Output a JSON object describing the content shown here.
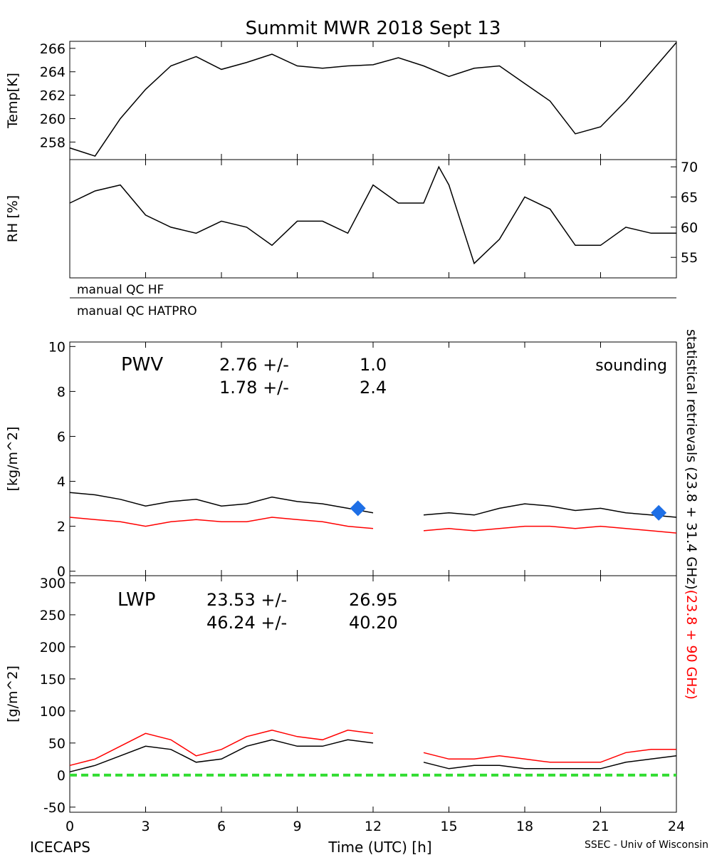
{
  "chart_data": [
    {
      "type": "line",
      "title": "Summit MWR 2018 Sept 13",
      "ylabel": "Temp[K]",
      "yaxis_side": "left",
      "xlim": [
        0,
        24
      ],
      "xticks": [
        0,
        3,
        6,
        9,
        12,
        15,
        18,
        21,
        24
      ],
      "ylim": [
        256.5,
        266.6
      ],
      "yticks": [
        258,
        260,
        262,
        264,
        266
      ],
      "x": [
        0,
        1,
        2,
        3,
        4,
        5,
        6,
        7,
        8,
        9,
        10,
        11,
        12,
        13,
        14,
        15,
        16,
        17,
        18,
        19,
        20,
        21,
        22,
        23,
        24
      ],
      "series": [
        {
          "color": "#000000",
          "values": [
            257.5,
            256.8,
            260,
            262.5,
            264.5,
            265.3,
            264.2,
            264.8,
            265.5,
            264.5,
            264.3,
            264.5,
            264.6,
            265.2,
            264.5,
            263.6,
            264.3,
            264.5,
            263,
            261.5,
            258.7,
            259.3,
            261.5,
            264,
            266.5
          ]
        }
      ]
    },
    {
      "type": "line",
      "ylabel": "RH [%]",
      "yaxis_side": "right",
      "xlim": [
        0,
        24
      ],
      "xticks": [
        0,
        3,
        6,
        9,
        12,
        15,
        18,
        21,
        24
      ],
      "ylim": [
        51.6,
        71.2
      ],
      "yticks": [
        55,
        60,
        65,
        70
      ],
      "x": [
        0,
        1,
        2,
        3,
        4,
        5,
        6,
        7,
        8,
        9,
        10,
        11,
        12,
        13,
        14,
        14.6,
        15,
        16,
        17,
        18,
        19,
        20,
        21,
        22,
        23,
        24
      ],
      "series": [
        {
          "color": "#000000",
          "values": [
            64,
            66,
            67,
            62,
            60,
            59,
            61,
            60,
            57,
            61,
            61,
            59,
            67,
            64,
            64,
            70,
            67,
            54,
            58,
            65,
            63,
            57,
            57,
            60,
            59,
            59
          ]
        }
      ],
      "qc_labels": [
        "manual QC HF",
        "manual QC HATPRO"
      ]
    },
    {
      "type": "line",
      "ylabel": "[kg/m^2]",
      "yaxis_side": "left",
      "xlim": [
        0,
        24
      ],
      "xticks": [
        0,
        3,
        6,
        9,
        12,
        15,
        18,
        21,
        24
      ],
      "ylim": [
        -0.2,
        10.2
      ],
      "yticks": [
        0,
        2,
        4,
        6,
        8,
        10
      ],
      "x": [
        0,
        1,
        2,
        3,
        4,
        5,
        6,
        7,
        8,
        9,
        10,
        11,
        12,
        13,
        14,
        15,
        16,
        17,
        18,
        19,
        20,
        21,
        22,
        23,
        24
      ],
      "series": [
        {
          "color": "#000000",
          "values": [
            3.5,
            3.4,
            3.2,
            2.9,
            3.1,
            3.2,
            2.9,
            3.0,
            3.3,
            3.1,
            3.0,
            2.8,
            2.6,
            null,
            2.5,
            2.6,
            2.5,
            2.8,
            3.0,
            2.9,
            2.7,
            2.8,
            2.6,
            2.5,
            2.4
          ]
        },
        {
          "color": "#ff0000",
          "values": [
            2.4,
            2.3,
            2.2,
            2.0,
            2.2,
            2.3,
            2.2,
            2.2,
            2.4,
            2.3,
            2.2,
            2.0,
            1.9,
            null,
            1.8,
            1.9,
            1.8,
            1.9,
            2.0,
            2.0,
            1.9,
            2.0,
            1.9,
            1.8,
            1.7
          ]
        }
      ],
      "sounding": {
        "color": "#1e6fe6",
        "x": [
          11.4,
          23.3
        ],
        "values": [
          2.8,
          2.6
        ]
      },
      "annotations": [
        {
          "text": "PWV",
          "color": "#000000"
        },
        {
          "text": "2.76 +/-",
          "color": "#000000"
        },
        {
          "text": "1.0",
          "color": "#000000"
        },
        {
          "text": "1.78 +/-",
          "color": "#ff0000"
        },
        {
          "text": "2.4",
          "color": "#ff0000"
        },
        {
          "text": "sounding",
          "color": "#1e6fe6"
        }
      ]
    },
    {
      "type": "line",
      "ylabel": "[g/m^2]",
      "yaxis_side": "left",
      "xlabel": "Time (UTC) [h]",
      "show_xtick_labels": true,
      "xlim": [
        0,
        24
      ],
      "xticks": [
        0,
        3,
        6,
        9,
        12,
        15,
        18,
        21,
        24
      ],
      "ylim": [
        -58,
        311
      ],
      "yticks": [
        -50,
        0,
        50,
        100,
        150,
        200,
        250,
        300
      ],
      "x": [
        0,
        1,
        2,
        3,
        4,
        5,
        6,
        7,
        8,
        9,
        10,
        11,
        12,
        13,
        14,
        15,
        16,
        17,
        18,
        19,
        20,
        21,
        22,
        23,
        24
      ],
      "series": [
        {
          "color": "#000000",
          "values": [
            5,
            15,
            30,
            45,
            40,
            20,
            25,
            45,
            55,
            45,
            45,
            55,
            50,
            null,
            20,
            10,
            15,
            15,
            10,
            10,
            10,
            10,
            20,
            25,
            30
          ]
        },
        {
          "color": "#ff0000",
          "values": [
            15,
            25,
            45,
            65,
            55,
            30,
            40,
            60,
            70,
            60,
            55,
            70,
            65,
            null,
            35,
            25,
            25,
            30,
            25,
            20,
            20,
            20,
            35,
            40,
            40
          ]
        }
      ],
      "hline": {
        "value": 0,
        "color": "#33dd33"
      },
      "annotations": [
        {
          "text": "LWP",
          "color": "#000000"
        },
        {
          "text": "23.53 +/-",
          "color": "#000000"
        },
        {
          "text": "26.95",
          "color": "#000000"
        },
        {
          "text": "46.24 +/-",
          "color": "#ff0000"
        },
        {
          "text": "40.20",
          "color": "#ff0000"
        }
      ]
    }
  ],
  "side_label": [
    {
      "text": "statistical retrievals (23.8 + 31.4 GHz)",
      "color": "#000000"
    },
    {
      "text": "(23.8 + 90 GHz)",
      "color": "#ff0000"
    }
  ],
  "footer": {
    "left": "ICECAPS",
    "right": "SSEC - Univ of Wisconsin"
  }
}
